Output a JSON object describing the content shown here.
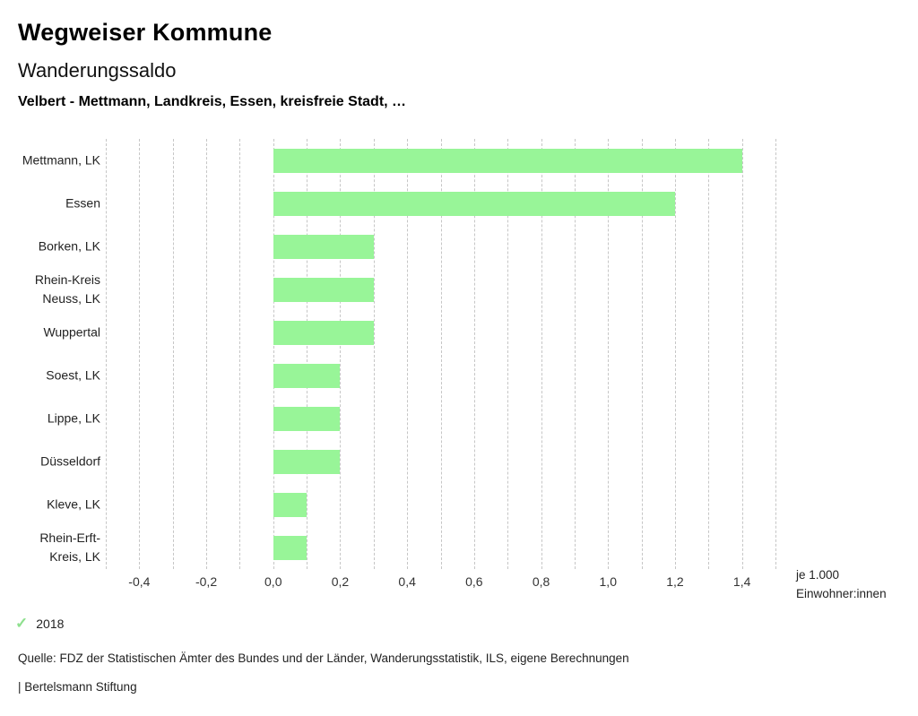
{
  "header": {
    "title": "Wegweiser Kommune",
    "subtitle": "Wanderungssaldo",
    "selection": "Velbert - Mettmann, Landkreis, Essen, kreisfreie Stadt, …"
  },
  "chart_data": {
    "type": "bar",
    "orientation": "horizontal",
    "title": "Wanderungssaldo",
    "categories": [
      "Mettmann, LK",
      "Essen",
      "Borken, LK",
      "Rhein-Kreis Neuss, LK",
      "Wuppertal",
      "Soest, LK",
      "Lippe, LK",
      "Düsseldorf",
      "Kleve, LK",
      "Rhein-Erft-Kreis, LK"
    ],
    "category_display_lines": [
      [
        "Mettmann, LK"
      ],
      [
        "Essen"
      ],
      [
        "Borken, LK"
      ],
      [
        "Rhein-Kreis",
        "Neuss, LK"
      ],
      [
        "Wuppertal"
      ],
      [
        "Soest, LK"
      ],
      [
        "Lippe, LK"
      ],
      [
        "Düsseldorf"
      ],
      [
        "Kleve, LK"
      ],
      [
        "Rhein-Erft-",
        "Kreis, LK"
      ]
    ],
    "series": [
      {
        "name": "2018",
        "values": [
          1.4,
          1.2,
          0.3,
          0.3,
          0.3,
          0.2,
          0.2,
          0.2,
          0.1,
          0.1
        ]
      }
    ],
    "xlim": [
      -0.5,
      1.5
    ],
    "gridline_step": 0.1,
    "x_ticks": [
      {
        "label": "-0,4",
        "value": -0.4
      },
      {
        "label": "-0,2",
        "value": -0.2
      },
      {
        "label": "0,0",
        "value": 0.0
      },
      {
        "label": "0,2",
        "value": 0.2
      },
      {
        "label": "0,4",
        "value": 0.4
      },
      {
        "label": "0,6",
        "value": 0.6
      },
      {
        "label": "0,8",
        "value": 0.8
      },
      {
        "label": "1,0",
        "value": 1.0
      },
      {
        "label": "1,2",
        "value": 1.2
      },
      {
        "label": "1,4",
        "value": 1.4
      }
    ],
    "xlabel_lines": [
      "je 1.000",
      "Einwohner:innen"
    ],
    "grid": true,
    "legend_position": "bottom-left",
    "bar_color": "#98f598",
    "gridline_color": "#c6c6c6"
  },
  "legend": {
    "year": "2018",
    "check_icon": "check-icon",
    "check_color": "#8ee08e"
  },
  "footer": {
    "source": "Quelle: FDZ der Statistischen Ämter des Bundes und der Länder, Wanderungsstatistik, ILS, eigene Berechnungen",
    "attribution": "| Bertelsmann Stiftung"
  }
}
